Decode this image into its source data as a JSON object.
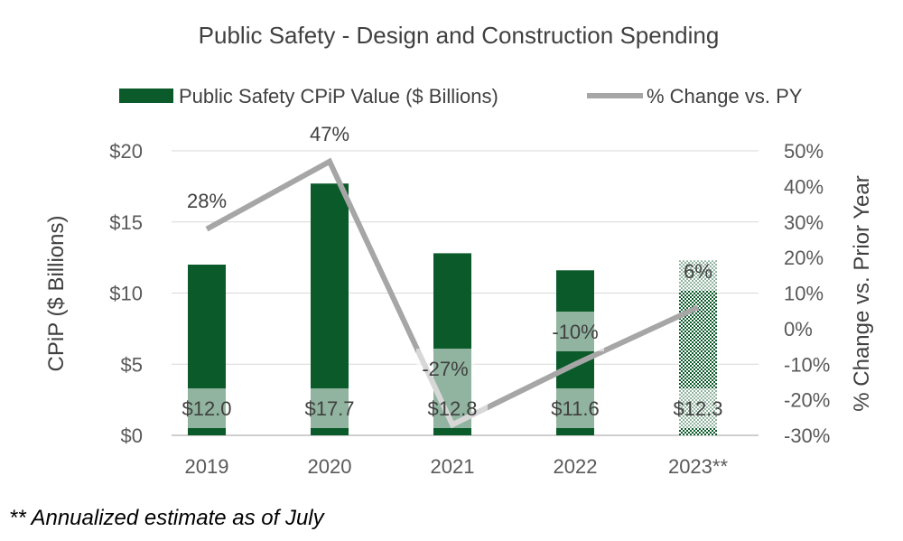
{
  "chart_data": {
    "type": "bar",
    "title": "Public Safety - Design and Construction Spending",
    "categories": [
      "2019",
      "2020",
      "2021",
      "2022",
      "2023**"
    ],
    "series": [
      {
        "name": "Public Safety CPiP Value ($ Billions)",
        "type": "bar",
        "axis": "left",
        "values": [
          12.0,
          17.7,
          12.8,
          11.6,
          12.3
        ],
        "labels": [
          "$12.0",
          "$17.7",
          "$12.8",
          "$11.6",
          "$12.3"
        ],
        "color": "#0b5a2a",
        "estimate_index": 4
      },
      {
        "name": "% Change vs. PY",
        "type": "line",
        "axis": "right",
        "values": [
          28,
          47,
          -27,
          -10,
          6
        ],
        "labels": [
          "28%",
          "47%",
          "-27%",
          "-10%",
          "6%"
        ],
        "color": "#a6a6a6"
      }
    ],
    "ylabel": "CPiP ($ Billions)",
    "y2label": "% Change vs. Prior Year",
    "ylim": [
      0,
      20
    ],
    "y2lim": [
      -30,
      50
    ],
    "yticks": [
      {
        "value": 0,
        "label": "$0"
      },
      {
        "value": 5,
        "label": "$5"
      },
      {
        "value": 10,
        "label": "$10"
      },
      {
        "value": 15,
        "label": "$15"
      },
      {
        "value": 20,
        "label": "$20"
      }
    ],
    "y2ticks": [
      {
        "value": -30,
        "label": "-30%"
      },
      {
        "value": -20,
        "label": "-20%"
      },
      {
        "value": -10,
        "label": "-10%"
      },
      {
        "value": 0,
        "label": "0%"
      },
      {
        "value": 10,
        "label": "10%"
      },
      {
        "value": 20,
        "label": "20%"
      },
      {
        "value": 30,
        "label": "30%"
      },
      {
        "value": 40,
        "label": "40%"
      },
      {
        "value": 50,
        "label": "50%"
      }
    ],
    "grid": true,
    "legend": "top-center"
  },
  "footnote": "** Annualized estimate as of July"
}
